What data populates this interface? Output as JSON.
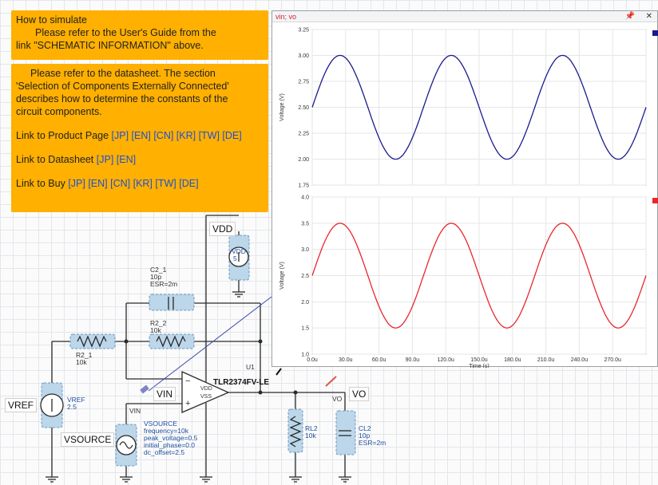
{
  "notes": {
    "simulate_title": "How to simulate",
    "simulate_line1": "Please refer to the User's Guide from the",
    "simulate_line2": "link \"SCHEMATIC INFORMATION\" above.",
    "datasheet_line1": "Please refer to the datasheet. The section",
    "datasheet_line2": "'Selection of Components Externally Connected'",
    "datasheet_line3": "describes how to determine the constants of the",
    "datasheet_line4": "circuit components.",
    "product_label": "Link to Product Page ",
    "product_links": "[JP] [EN] [CN] [KR] [TW] [DE]",
    "datasheet_label": "Link to Datasheet ",
    "datasheet_links": "[JP] [EN]",
    "buy_label": "Link to Buy ",
    "buy_links": "[JP] [EN] [CN] [KR] [TW] [DE]"
  },
  "schematic": {
    "vdd_net": "VDD",
    "vdd_src_name": "VDD",
    "vdd_src_val": "5",
    "c2_name": "C2_1",
    "c2_val": "10p",
    "c2_esr": "ESR=2m",
    "r2_2_name": "R2_2",
    "r2_2_val": "10k",
    "r2_1_name": "R2_1",
    "r2_1_val": "10k",
    "u1_name": "U1",
    "u1_part": "TLR2374FV-LE",
    "pin_vdd": "VDD",
    "pin_vss": "VSS",
    "minus": "−",
    "plus": "+",
    "vin_net": "VIN",
    "vin_small": "VIN",
    "vo_net": "VO",
    "vo_small": "VO",
    "vref_net": "VREF",
    "vref_src_name": "VREF",
    "vref_src_val": "2.5",
    "vsource_net": "VSOURCE",
    "vsource_name": "VSOURCE",
    "vsource_freq": "frequency=10k",
    "vsource_peak": "peak_voltage=0.5",
    "vsource_phase": "initial_phase=0.0",
    "vsource_dc": "dc_offset=2.5",
    "rl2_name": "RL2",
    "rl2_val": "10k",
    "cl2_name": "CL2",
    "cl2_val": "10p",
    "cl2_esr": "ESR=2m"
  },
  "graph_window": {
    "title": "vin; vo",
    "pin_icon": "pin-icon",
    "close_icon": "close-icon",
    "top_series_color": "#1a1a8c",
    "bottom_series_color": "#e8262c"
  },
  "chart_data": [
    {
      "type": "line",
      "ylabel": "Voltage (V)",
      "ylim": [
        1.75,
        3.25
      ],
      "yticks": [
        "1.75",
        "2.00",
        "2.25",
        "2.50",
        "2.75",
        "3.00",
        "3.25"
      ],
      "x": [
        0,
        10,
        20,
        30,
        40,
        50,
        60,
        70,
        80,
        90,
        100,
        110,
        120,
        130,
        140,
        150,
        160,
        170,
        180,
        190,
        200,
        210,
        220,
        230,
        240,
        250,
        260,
        270,
        280,
        290,
        300
      ],
      "series": [
        {
          "values": [
            2.5,
            2.794,
            2.976,
            2.976,
            2.794,
            2.5,
            2.206,
            2.024,
            2.024,
            2.206,
            2.5,
            2.794,
            2.976,
            2.976,
            2.794,
            2.5,
            2.206,
            2.024,
            2.024,
            2.206,
            2.5,
            2.794,
            2.976,
            2.976,
            2.794,
            2.5,
            2.206,
            2.024,
            2.024,
            2.206,
            2.5
          ],
          "color": "#1a1a8c"
        }
      ],
      "grid": true
    },
    {
      "type": "line",
      "ylabel": "Voltage (V)",
      "xlabel": "Time (s)",
      "ylim": [
        1.0,
        4.0
      ],
      "yticks": [
        "1.0",
        "1.5",
        "2.0",
        "2.5",
        "3.0",
        "3.5",
        "4.0"
      ],
      "xticks": [
        "0.0u",
        "30.0u",
        "60.0u",
        "90.0u",
        "120.0u",
        "150.0u",
        "180.0u",
        "210.0u",
        "240.0u",
        "270.0u"
      ],
      "x": [
        0,
        10,
        20,
        30,
        40,
        50,
        60,
        70,
        80,
        90,
        100,
        110,
        120,
        130,
        140,
        150,
        160,
        170,
        180,
        190,
        200,
        210,
        220,
        230,
        240,
        250,
        260,
        270,
        280,
        290,
        300
      ],
      "series": [
        {
          "values": [
            2.5,
            3.088,
            3.451,
            3.451,
            3.088,
            2.5,
            1.912,
            1.549,
            1.549,
            1.912,
            2.5,
            3.088,
            3.451,
            3.451,
            3.088,
            2.5,
            1.912,
            1.549,
            1.549,
            1.912,
            2.5,
            3.088,
            3.451,
            3.451,
            3.088,
            2.5,
            1.912,
            1.549,
            1.549,
            1.912,
            2.5
          ],
          "color": "#e8262c"
        }
      ],
      "grid": true
    }
  ]
}
